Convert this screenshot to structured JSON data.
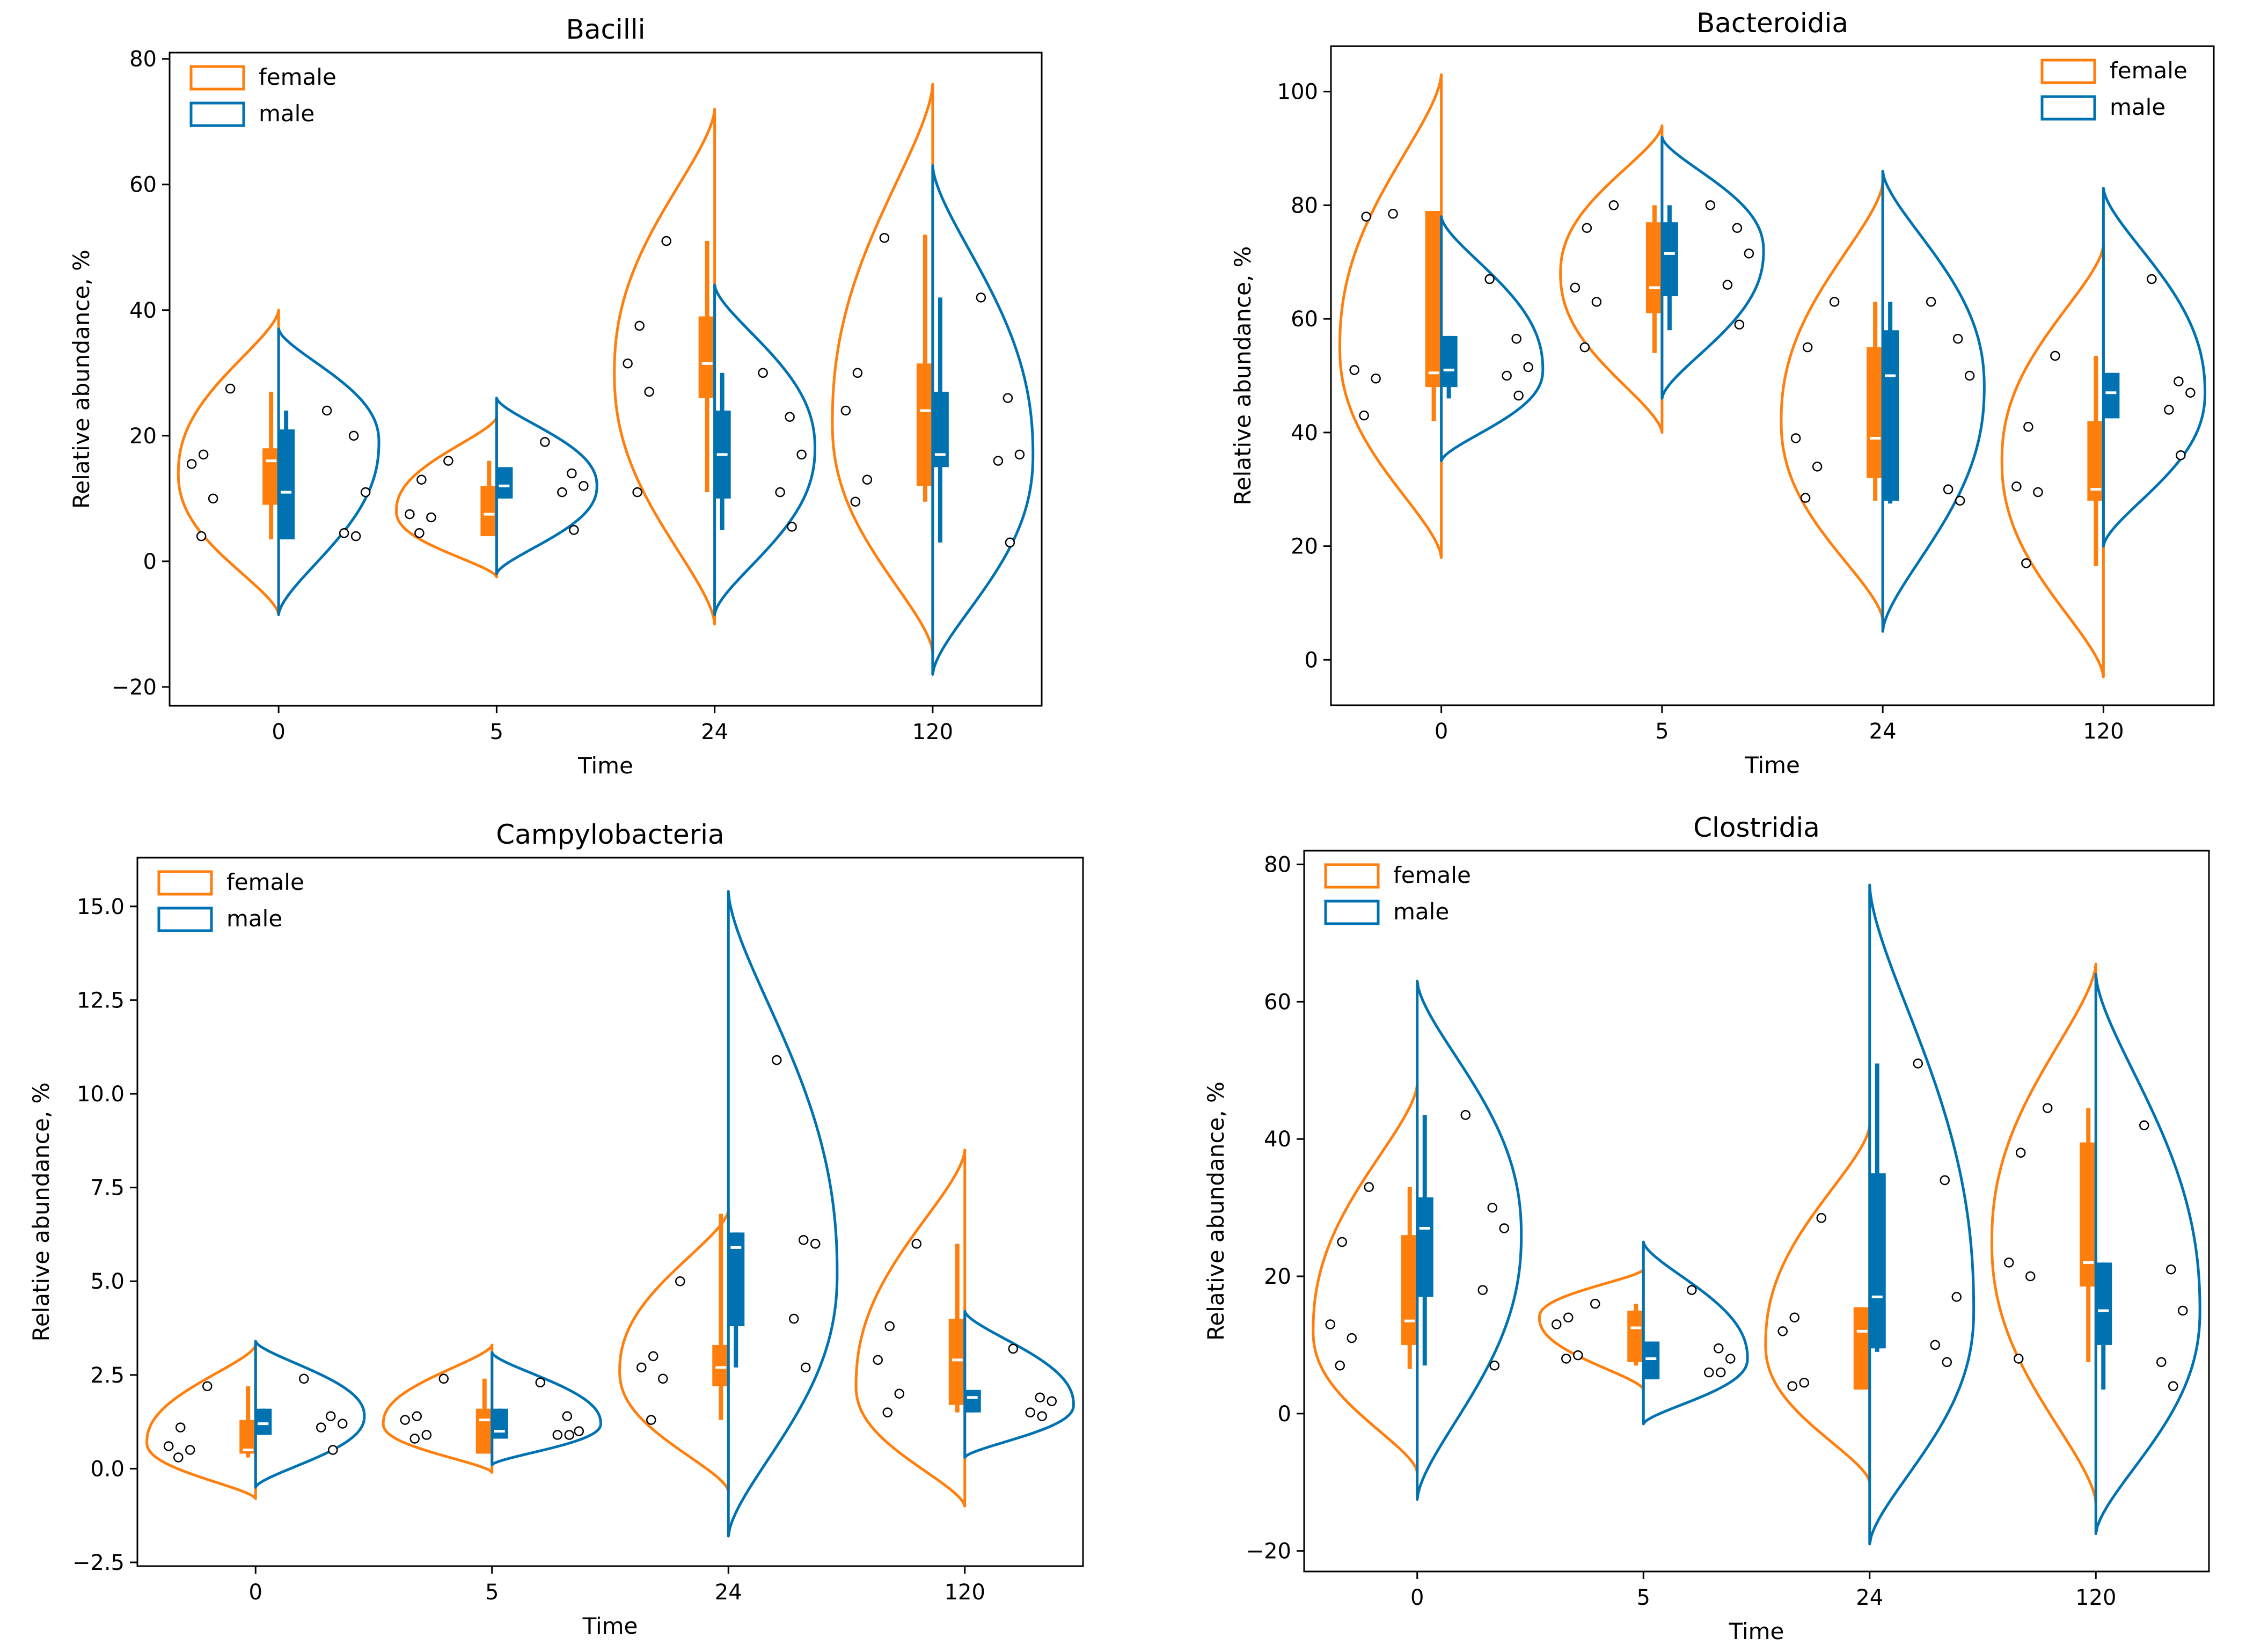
{
  "figure": {
    "ylabel": "Relative abundance, %",
    "xlabel": "Time",
    "legend": [
      "female",
      "male"
    ],
    "colors": {
      "female": "#ff7f0e",
      "male": "#0072b2"
    }
  },
  "chart_data": [
    {
      "type": "violin",
      "title": "Bacilli",
      "xlabel": "Time",
      "ylabel": "Relative abundance, %",
      "categories": [
        "0",
        "5",
        "24",
        "120"
      ],
      "yticks": [
        -20,
        0,
        20,
        40,
        60,
        80
      ],
      "ylim": [
        -23,
        81
      ],
      "legend_loc": "upper left",
      "groups": {
        "female": [
          {
            "min": -8.5,
            "max": 40,
            "mode": 14,
            "box": [
              9,
              18
            ],
            "median": 16,
            "whisk": [
              3.5,
              27
            ],
            "points": [
              27.5,
              17,
              15.5,
              10,
              4
            ]
          },
          {
            "min": -2.5,
            "max": 23,
            "mode": 8,
            "box": [
              4,
              12
            ],
            "median": 7.5,
            "whisk": [
              4,
              16
            ],
            "points": [
              16,
              13,
              7.5,
              7,
              4.5
            ]
          },
          {
            "min": -10,
            "max": 72,
            "mode": 30,
            "box": [
              26,
              39
            ],
            "median": 31.5,
            "whisk": [
              11,
              51
            ],
            "points": [
              51,
              37.5,
              31.5,
              27,
              11
            ]
          },
          {
            "min": -14.5,
            "max": 76,
            "mode": 22,
            "box": [
              12,
              31.5
            ],
            "median": 24,
            "whisk": [
              9.5,
              52
            ],
            "points": [
              51.5,
              30,
              24,
              13,
              9.5
            ]
          }
        ],
        "male": [
          {
            "min": -8.5,
            "max": 37,
            "mode": 19,
            "box": [
              3.5,
              21
            ],
            "median": 11,
            "whisk": [
              3.5,
              24
            ],
            "points": [
              24,
              20,
              11,
              4.5,
              4
            ]
          },
          {
            "min": -2,
            "max": 26,
            "mode": 12,
            "box": [
              10,
              15
            ],
            "median": 12,
            "whisk": [
              10,
              15
            ],
            "points": [
              19,
              14,
              12,
              11,
              5
            ]
          },
          {
            "min": -8.5,
            "max": 44,
            "mode": 18,
            "box": [
              10,
              24
            ],
            "median": 17,
            "whisk": [
              5,
              30
            ],
            "points": [
              30,
              23,
              17,
              11,
              5.5
            ]
          },
          {
            "min": -18,
            "max": 63,
            "mode": 17,
            "box": [
              15,
              27
            ],
            "median": 17,
            "whisk": [
              3,
              42
            ],
            "points": [
              42,
              26,
              17,
              16,
              3
            ]
          }
        ]
      }
    },
    {
      "type": "violin",
      "title": "Bacteroidia",
      "xlabel": "Time",
      "ylabel": "Relative abundance, %",
      "categories": [
        "0",
        "5",
        "24",
        "120"
      ],
      "yticks": [
        0,
        20,
        40,
        60,
        80,
        100
      ],
      "ylim": [
        -8,
        108
      ],
      "legend_loc": "upper right",
      "groups": {
        "female": [
          {
            "min": 18,
            "max": 103,
            "mode": 55,
            "box": [
              48,
              79
            ],
            "median": 50.5,
            "whisk": [
              42,
              79
            ],
            "points": [
              78.5,
              78,
              51,
              49.5,
              43
            ]
          },
          {
            "min": 40,
            "max": 94,
            "mode": 68,
            "box": [
              61,
              77
            ],
            "median": 65.5,
            "whisk": [
              54,
              80
            ],
            "points": [
              80,
              76,
              65.5,
              63,
              55
            ]
          },
          {
            "min": 7,
            "max": 84,
            "mode": 42,
            "box": [
              32,
              55
            ],
            "median": 39,
            "whisk": [
              28,
              63
            ],
            "points": [
              63,
              55,
              39,
              34,
              28.5
            ]
          },
          {
            "min": -3,
            "max": 73,
            "mode": 35,
            "box": [
              28,
              42
            ],
            "median": 30,
            "whisk": [
              16.5,
              53.5
            ],
            "points": [
              53.5,
              41,
              30.5,
              29.5,
              17
            ]
          }
        ],
        "male": [
          {
            "min": 35,
            "max": 78,
            "mode": 51,
            "box": [
              48,
              57
            ],
            "median": 51,
            "whisk": [
              46,
              57
            ],
            "points": [
              67,
              56.5,
              51.5,
              50,
              46.5
            ]
          },
          {
            "min": 46,
            "max": 92,
            "mode": 72,
            "box": [
              64,
              77
            ],
            "median": 71.5,
            "whisk": [
              58,
              80
            ],
            "points": [
              80,
              76,
              71.5,
              66,
              59
            ]
          },
          {
            "min": 5,
            "max": 86,
            "mode": 48,
            "box": [
              28,
              58
            ],
            "median": 50,
            "whisk": [
              27.5,
              63
            ],
            "points": [
              63,
              56.5,
              50,
              30,
              28
            ]
          },
          {
            "min": 20,
            "max": 83,
            "mode": 47,
            "box": [
              42.5,
              50.5
            ],
            "median": 47,
            "whisk": [
              42.5,
              50.5
            ],
            "points": [
              67,
              49,
              47,
              44,
              36
            ]
          }
        ]
      }
    },
    {
      "type": "violin",
      "title": "Campylobacteria",
      "xlabel": "Time",
      "ylabel": "Relative abundance, %",
      "categories": [
        "0",
        "5",
        "24",
        "120"
      ],
      "yticks": [
        -2.5,
        0.0,
        2.5,
        5.0,
        7.5,
        10.0,
        12.5,
        15.0
      ],
      "ytick_labels": [
        "−2.5",
        "0.0",
        "2.5",
        "5.0",
        "7.5",
        "10.0",
        "12.5",
        "15.0"
      ],
      "ylim": [
        -2.6,
        16.3
      ],
      "legend_loc": "upper left",
      "groups": {
        "female": [
          {
            "min": -0.8,
            "max": 3.3,
            "mode": 0.7,
            "box": [
              0.4,
              1.3
            ],
            "median": 0.5,
            "whisk": [
              0.3,
              2.2
            ],
            "points": [
              2.2,
              1.1,
              0.6,
              0.5,
              0.3
            ]
          },
          {
            "min": -0.1,
            "max": 3.3,
            "mode": 1.2,
            "box": [
              0.4,
              1.6
            ],
            "median": 1.3,
            "whisk": [
              0.4,
              2.4
            ],
            "points": [
              2.4,
              1.4,
              1.3,
              0.9,
              0.8
            ]
          },
          {
            "min": -0.6,
            "max": 6.9,
            "mode": 2.6,
            "box": [
              2.2,
              3.3
            ],
            "median": 2.7,
            "whisk": [
              1.3,
              6.8
            ],
            "points": [
              5.0,
              3.0,
              2.7,
              2.4,
              1.3
            ]
          },
          {
            "min": -1.0,
            "max": 8.5,
            "mode": 2.2,
            "box": [
              1.7,
              4.0
            ],
            "median": 2.9,
            "whisk": [
              1.5,
              6.0
            ],
            "points": [
              6.0,
              3.8,
              2.9,
              2.0,
              1.5
            ]
          }
        ],
        "male": [
          {
            "min": -0.5,
            "max": 3.4,
            "mode": 1.4,
            "box": [
              0.9,
              1.6
            ],
            "median": 1.2,
            "whisk": [
              0.9,
              1.6
            ],
            "points": [
              2.4,
              1.4,
              1.2,
              1.1,
              0.5
            ]
          },
          {
            "min": 0.1,
            "max": 3.1,
            "mode": 1.2,
            "box": [
              0.8,
              1.6
            ],
            "median": 1.0,
            "whisk": [
              0.8,
              1.6
            ],
            "points": [
              2.3,
              1.4,
              1.0,
              0.9,
              0.9
            ]
          },
          {
            "min": -1.8,
            "max": 15.4,
            "mode": 5.2,
            "box": [
              3.8,
              6.3
            ],
            "median": 5.9,
            "whisk": [
              2.7,
              6.3
            ],
            "points": [
              10.9,
              6.1,
              6.0,
              4.0,
              2.7
            ]
          },
          {
            "min": 0.3,
            "max": 4.2,
            "mode": 1.7,
            "box": [
              1.5,
              2.1
            ],
            "median": 1.9,
            "whisk": [
              1.5,
              2.1
            ],
            "points": [
              3.2,
              1.9,
              1.8,
              1.5,
              1.4
            ]
          }
        ]
      }
    },
    {
      "type": "violin",
      "title": "Clostridia",
      "xlabel": "Time",
      "ylabel": "Relative abundance, %",
      "categories": [
        "0",
        "5",
        "24",
        "120"
      ],
      "yticks": [
        -20,
        0,
        20,
        40,
        60,
        80
      ],
      "ylim": [
        -23,
        82
      ],
      "legend_loc": "upper left",
      "groups": {
        "female": [
          {
            "min": -8.5,
            "max": 48,
            "mode": 12,
            "box": [
              10,
              26
            ],
            "median": 13.5,
            "whisk": [
              6.5,
              33
            ],
            "points": [
              33,
              25,
              13,
              11,
              7
            ]
          },
          {
            "min": 3.5,
            "max": 21,
            "mode": 14,
            "box": [
              7.5,
              15
            ],
            "median": 12.5,
            "whisk": [
              7,
              16
            ],
            "points": [
              16,
              14,
              13,
              8.5,
              8
            ]
          },
          {
            "min": -10,
            "max": 42,
            "mode": 10,
            "box": [
              3.5,
              15.5
            ],
            "median": 12,
            "whisk": [
              3.5,
              15.5
            ],
            "points": [
              28.5,
              14,
              12,
              4.5,
              4
            ]
          },
          {
            "min": -13,
            "max": 65.5,
            "mode": 25,
            "box": [
              18.5,
              39.5
            ],
            "median": 22,
            "whisk": [
              7.5,
              44.5
            ],
            "points": [
              44.5,
              38,
              22,
              20,
              8
            ]
          }
        ],
        "male": [
          {
            "min": -12.5,
            "max": 63,
            "mode": 26,
            "box": [
              17,
              31.5
            ],
            "median": 27,
            "whisk": [
              7,
              43.5
            ],
            "points": [
              43.5,
              30,
              27,
              18,
              7
            ]
          },
          {
            "min": -1.5,
            "max": 25,
            "mode": 8,
            "box": [
              5,
              10.5
            ],
            "median": 8,
            "whisk": [
              5,
              10.5
            ],
            "points": [
              18,
              9.5,
              8,
              6,
              6
            ]
          },
          {
            "min": -19,
            "max": 77,
            "mode": 15,
            "box": [
              9.5,
              35
            ],
            "median": 17,
            "whisk": [
              9,
              51
            ],
            "points": [
              51,
              34,
              17,
              10,
              7.5
            ]
          },
          {
            "min": -17.5,
            "max": 64,
            "mode": 15,
            "box": [
              10,
              22
            ],
            "median": 15,
            "whisk": [
              3.5,
              22
            ],
            "points": [
              42,
              21,
              15,
              7.5,
              4
            ]
          }
        ]
      }
    }
  ]
}
